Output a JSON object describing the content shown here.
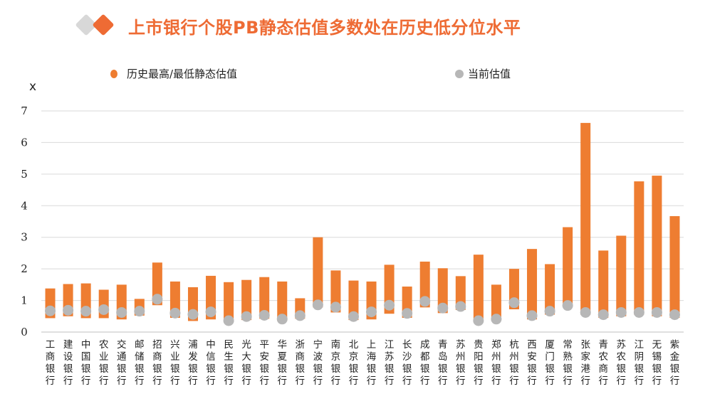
{
  "title": "上市银行个股PB静态估值多数处在历史低分位水平",
  "colors": {
    "accent": "#ee6b34",
    "bar": "#ee7d31",
    "dot": "#b7b7b7",
    "grid": "#d9d9d9",
    "deco": "#d8d8d8"
  },
  "chart_data": {
    "type": "bar",
    "ylabel": "x",
    "ylim": [
      0,
      7
    ],
    "yticks": [
      0,
      1,
      2,
      3,
      4,
      5,
      6,
      7
    ],
    "grid": true,
    "legend_position": "top",
    "legend": [
      "历史最高/最低静态估值",
      "当前估值"
    ],
    "categories": [
      "工商银行",
      "建设银行",
      "中国银行",
      "农业银行",
      "交通银行",
      "邮储银行",
      "招商银行",
      "兴业银行",
      "浦发银行",
      "中信银行",
      "民生银行",
      "光大银行",
      "平安银行",
      "华夏银行",
      "浙商银行",
      "宁波银行",
      "南京银行",
      "北京银行",
      "上海银行",
      "江苏银行",
      "长沙银行",
      "成都银行",
      "青岛银行",
      "苏州银行",
      "贵阳银行",
      "郑州银行",
      "杭州银行",
      "西安银行",
      "厦门银行",
      "常熟银行",
      "张家港行",
      "青农商行",
      "苏农银行",
      "江阴银行",
      "无锡银行",
      "紫金银行"
    ],
    "series": [
      {
        "name": "历史最高/最低静态估值",
        "type": "floating-bar",
        "high": [
          1.38,
          1.52,
          1.54,
          1.34,
          1.5,
          1.05,
          2.2,
          1.6,
          1.42,
          1.78,
          1.58,
          1.65,
          1.74,
          1.6,
          1.07,
          3.0,
          1.95,
          1.63,
          1.6,
          2.13,
          1.44,
          2.23,
          2.02,
          1.77,
          2.45,
          1.5,
          2.0,
          2.63,
          2.15,
          3.32,
          6.62,
          2.58,
          3.05,
          4.77,
          4.95,
          3.67
        ],
        "low": [
          0.44,
          0.5,
          0.44,
          0.44,
          0.4,
          0.52,
          0.85,
          0.45,
          0.35,
          0.4,
          0.32,
          0.38,
          0.42,
          0.35,
          0.42,
          0.78,
          0.62,
          0.38,
          0.4,
          0.58,
          0.45,
          0.78,
          0.6,
          0.7,
          0.32,
          0.35,
          0.72,
          0.4,
          0.55,
          0.8,
          0.55,
          0.45,
          0.5,
          0.55,
          0.5,
          0.45
        ]
      },
      {
        "name": "当前估值",
        "type": "scatter",
        "values": [
          0.67,
          0.69,
          0.66,
          0.71,
          0.62,
          0.66,
          1.04,
          0.6,
          0.56,
          0.64,
          0.36,
          0.49,
          0.53,
          0.41,
          0.52,
          0.86,
          0.79,
          0.49,
          0.64,
          0.85,
          0.59,
          0.97,
          0.76,
          0.81,
          0.36,
          0.41,
          0.93,
          0.52,
          0.66,
          0.84,
          0.62,
          0.55,
          0.62,
          0.62,
          0.62,
          0.55
        ]
      }
    ]
  }
}
